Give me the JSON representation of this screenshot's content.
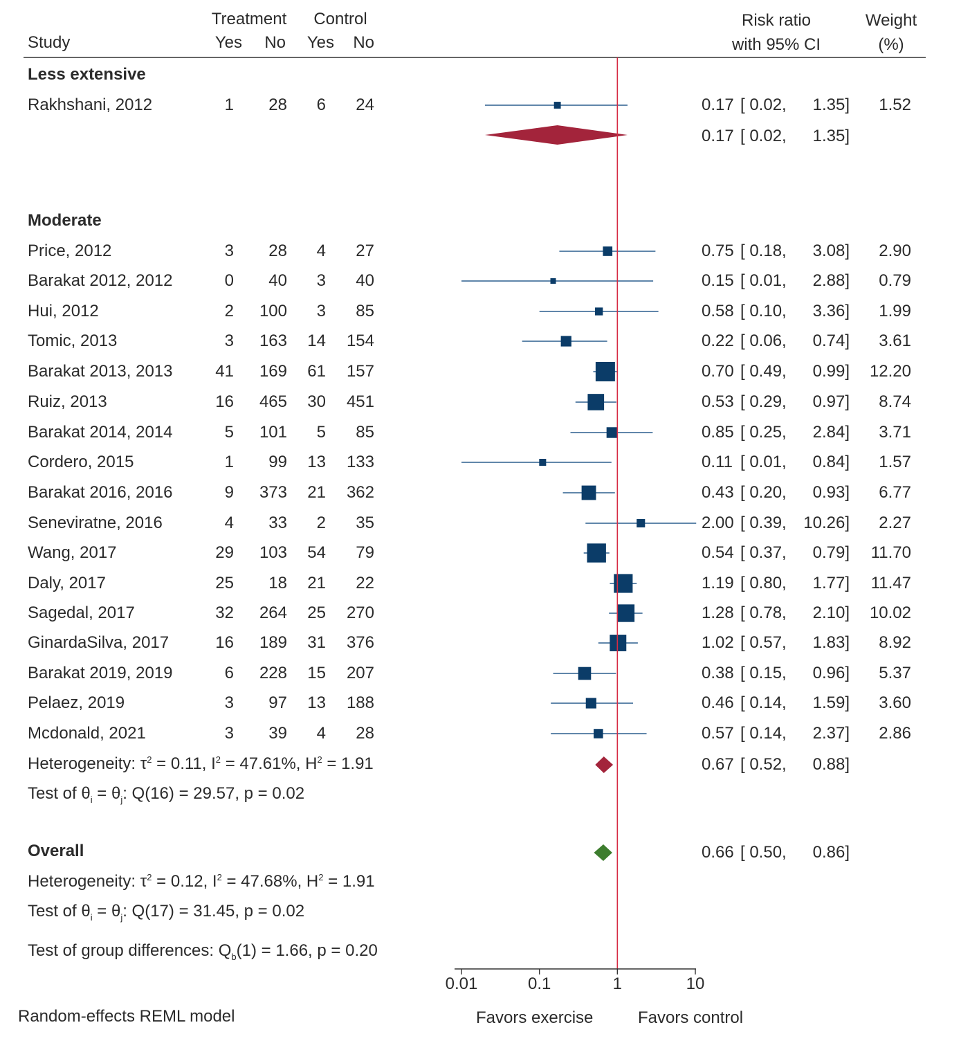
{
  "header": {
    "study": "Study",
    "treatment": "Treatment",
    "control": "Control",
    "yes": "Yes",
    "no": "No",
    "rr1": "Risk ratio",
    "rr2": "with 95% CI",
    "w1": "Weight",
    "w2": "(%)"
  },
  "chart_data": {
    "type": "forest",
    "scale": "log",
    "xlim": [
      0.01,
      10
    ],
    "ticks": [
      0.01,
      0.1,
      1,
      10
    ],
    "tick_labels": [
      "0.01",
      "0.1",
      "1",
      "10"
    ],
    "null_line": 1,
    "left_label": "Favors exercise",
    "right_label": "Favors control",
    "colors": {
      "study": "#0b3c68",
      "ci": "#2b5f8e",
      "subgroup": "#a3243b",
      "overall": "#3d7d2e",
      "null": "#d62a43"
    },
    "groups": [
      {
        "name": "Less extensive",
        "studies": [
          {
            "study": "Rakhshani, 2012",
            "ty": "1",
            "tn": "28",
            "cy": "6",
            "cn": "24",
            "rr": 0.17,
            "lo": 0.02,
            "hi": 1.35,
            "rr_s": "0.17",
            "lo_s": "0.02",
            "hi_s": "1.35",
            "weight": "1.52"
          }
        ],
        "summary": {
          "rr": 0.17,
          "lo": 0.02,
          "hi": 1.35,
          "rr_s": "0.17",
          "lo_s": "0.02",
          "hi_s": "1.35"
        }
      },
      {
        "name": "Moderate",
        "studies": [
          {
            "study": "Price, 2012",
            "ty": "3",
            "tn": "28",
            "cy": "4",
            "cn": "27",
            "rr": 0.75,
            "lo": 0.18,
            "hi": 3.08,
            "rr_s": "0.75",
            "lo_s": "0.18",
            "hi_s": "3.08",
            "weight": "2.90"
          },
          {
            "study": "Barakat 2012, 2012",
            "ty": "0",
            "tn": "40",
            "cy": "3",
            "cn": "40",
            "rr": 0.15,
            "lo": 0.01,
            "hi": 2.88,
            "rr_s": "0.15",
            "lo_s": "0.01",
            "hi_s": "2.88",
            "weight": "0.79"
          },
          {
            "study": "Hui, 2012",
            "ty": "2",
            "tn": "100",
            "cy": "3",
            "cn": "85",
            "rr": 0.58,
            "lo": 0.1,
            "hi": 3.36,
            "rr_s": "0.58",
            "lo_s": "0.10",
            "hi_s": "3.36",
            "weight": "1.99"
          },
          {
            "study": "Tomic, 2013",
            "ty": "3",
            "tn": "163",
            "cy": "14",
            "cn": "154",
            "rr": 0.22,
            "lo": 0.06,
            "hi": 0.74,
            "rr_s": "0.22",
            "lo_s": "0.06",
            "hi_s": "0.74",
            "weight": "3.61"
          },
          {
            "study": "Barakat 2013, 2013",
            "ty": "41",
            "tn": "169",
            "cy": "61",
            "cn": "157",
            "rr": 0.7,
            "lo": 0.49,
            "hi": 0.99,
            "rr_s": "0.70",
            "lo_s": "0.49",
            "hi_s": "0.99",
            "weight": "12.20"
          },
          {
            "study": "Ruiz, 2013",
            "ty": "16",
            "tn": "465",
            "cy": "30",
            "cn": "451",
            "rr": 0.53,
            "lo": 0.29,
            "hi": 0.97,
            "rr_s": "0.53",
            "lo_s": "0.29",
            "hi_s": "0.97",
            "weight": "8.74"
          },
          {
            "study": "Barakat 2014, 2014",
            "ty": "5",
            "tn": "101",
            "cy": "5",
            "cn": "85",
            "rr": 0.85,
            "lo": 0.25,
            "hi": 2.84,
            "rr_s": "0.85",
            "lo_s": "0.25",
            "hi_s": "2.84",
            "weight": "3.71"
          },
          {
            "study": "Cordero, 2015",
            "ty": "1",
            "tn": "99",
            "cy": "13",
            "cn": "133",
            "rr": 0.11,
            "lo": 0.01,
            "hi": 0.84,
            "rr_s": "0.11",
            "lo_s": "0.01",
            "hi_s": "0.84",
            "weight": "1.57"
          },
          {
            "study": "Barakat 2016, 2016",
            "ty": "9",
            "tn": "373",
            "cy": "21",
            "cn": "362",
            "rr": 0.43,
            "lo": 0.2,
            "hi": 0.93,
            "rr_s": "0.43",
            "lo_s": "0.20",
            "hi_s": "0.93",
            "weight": "6.77"
          },
          {
            "study": "Seneviratne, 2016",
            "ty": "4",
            "tn": "33",
            "cy": "2",
            "cn": "35",
            "rr": 2.0,
            "lo": 0.39,
            "hi": 10.26,
            "rr_s": "2.00",
            "lo_s": "0.39",
            "hi_s": "10.26",
            "weight": "2.27"
          },
          {
            "study": "Wang, 2017",
            "ty": "29",
            "tn": "103",
            "cy": "54",
            "cn": "79",
            "rr": 0.54,
            "lo": 0.37,
            "hi": 0.79,
            "rr_s": "0.54",
            "lo_s": "0.37",
            "hi_s": "0.79",
            "weight": "11.70"
          },
          {
            "study": "Daly, 2017",
            "ty": "25",
            "tn": "18",
            "cy": "21",
            "cn": "22",
            "rr": 1.19,
            "lo": 0.8,
            "hi": 1.77,
            "rr_s": "1.19",
            "lo_s": "0.80",
            "hi_s": "1.77",
            "weight": "11.47"
          },
          {
            "study": "Sagedal, 2017",
            "ty": "32",
            "tn": "264",
            "cy": "25",
            "cn": "270",
            "rr": 1.28,
            "lo": 0.78,
            "hi": 2.1,
            "rr_s": "1.28",
            "lo_s": "0.78",
            "hi_s": "2.10",
            "weight": "10.02"
          },
          {
            "study": "GinardaSilva, 2017",
            "ty": "16",
            "tn": "189",
            "cy": "31",
            "cn": "376",
            "rr": 1.02,
            "lo": 0.57,
            "hi": 1.83,
            "rr_s": "1.02",
            "lo_s": "0.57",
            "hi_s": "1.83",
            "weight": "8.92"
          },
          {
            "study": "Barakat 2019, 2019",
            "ty": "6",
            "tn": "228",
            "cy": "15",
            "cn": "207",
            "rr": 0.38,
            "lo": 0.15,
            "hi": 0.96,
            "rr_s": "0.38",
            "lo_s": "0.15",
            "hi_s": "0.96",
            "weight": "5.37"
          },
          {
            "study": "Pelaez, 2019",
            "ty": "3",
            "tn": "97",
            "cy": "13",
            "cn": "188",
            "rr": 0.46,
            "lo": 0.14,
            "hi": 1.59,
            "rr_s": "0.46",
            "lo_s": "0.14",
            "hi_s": "1.59",
            "weight": "3.60"
          },
          {
            "study": "Mcdonald, 2021",
            "ty": "3",
            "tn": "39",
            "cy": "4",
            "cn": "28",
            "rr": 0.57,
            "lo": 0.14,
            "hi": 2.37,
            "rr_s": "0.57",
            "lo_s": "0.14",
            "hi_s": "2.37",
            "weight": "2.86"
          }
        ],
        "summary": {
          "rr": 0.67,
          "lo": 0.52,
          "hi": 0.88,
          "rr_s": "0.67",
          "lo_s": "0.52",
          "hi_s": "0.88"
        }
      }
    ],
    "overall": {
      "rr": 0.66,
      "lo": 0.5,
      "hi": 0.86,
      "rr_s": "0.66",
      "lo_s": "0.50",
      "hi_s": "0.86"
    }
  },
  "labels": {
    "overall": "Overall",
    "model": "Random-effects REML model"
  },
  "stats": {
    "het": {
      "prefix": "Heterogeneity: ",
      "tau": "τ",
      "t2": " = ",
      "moderate": {
        "tau2": "0.11",
        "I2": "47.61%",
        "H2": "1.91"
      },
      "overall": {
        "tau2": "0.12",
        "I2": "47.68%",
        "H2": "1.91"
      }
    },
    "test": {
      "prefix": "Test of θ",
      "i": "i",
      "j": "j",
      "moderate": {
        "df": "16",
        "Q": "29.57",
        "p": "0.02"
      },
      "overall": {
        "df": "17",
        "Q": "31.45",
        "p": "0.02"
      }
    },
    "group": {
      "prefix": "Test of group differences: Q",
      "sub": "b",
      "df": "1",
      "Q": "1.66",
      "p": "0.20"
    }
  }
}
